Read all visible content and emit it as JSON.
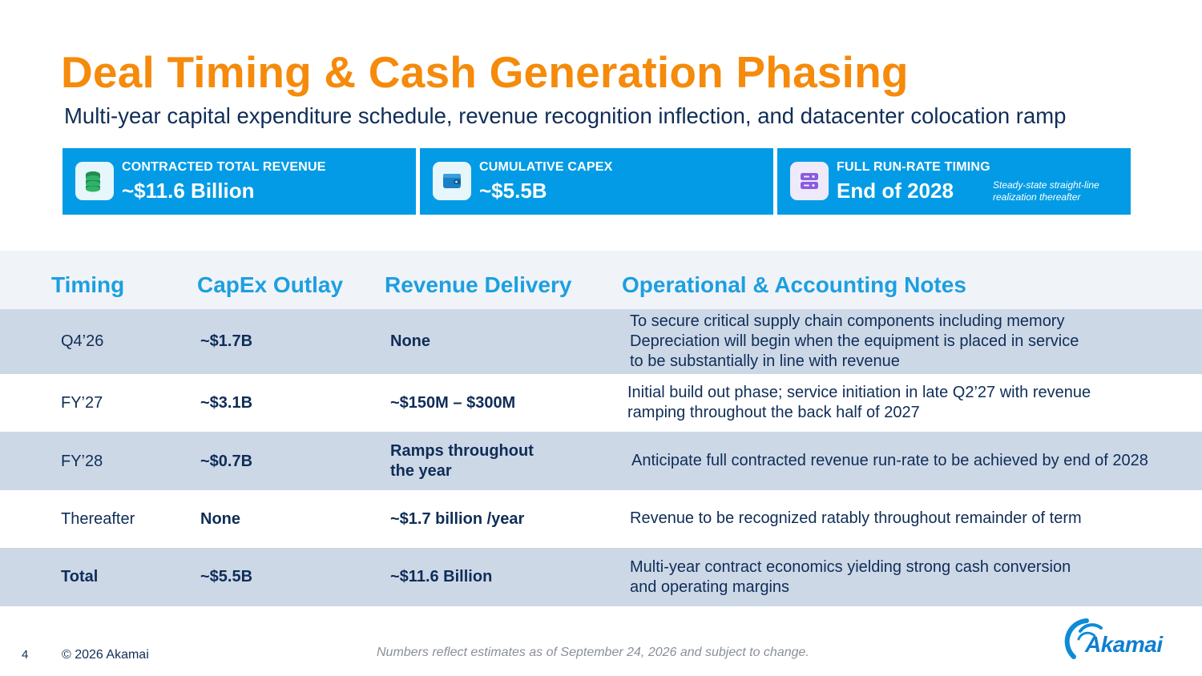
{
  "slide": {
    "title": "Deal Timing & Cash Generation Phasing",
    "subtitle": "Multi-year capital expenditure schedule, revenue recognition inflection, and datacenter colocation ramp"
  },
  "cards": [
    {
      "icon": "coins-icon",
      "label": "CONTRACTED TOTAL REVENUE",
      "value": "~$11.6 Billion",
      "note": ""
    },
    {
      "icon": "wallet-icon",
      "label": "CUMULATIVE CAPEX",
      "value": "~$5.5B",
      "note": ""
    },
    {
      "icon": "server-icon",
      "label": "FULL RUN-RATE TIMING",
      "value": "End of 2028",
      "note": "Steady-state straight-line realization thereafter"
    }
  ],
  "table": {
    "headers": [
      "Timing",
      "CapEx Outlay",
      "Revenue Delivery",
      "Operational & Accounting Notes"
    ],
    "rows": [
      {
        "timing": "Q4’26",
        "capex": "~$1.7B",
        "revenue": "None",
        "notes": [
          "To secure critical supply chain components including memory",
          "Depreciation will begin when the equipment is placed in service",
          "to be substantially in line with revenue"
        ]
      },
      {
        "timing": "FY’27",
        "capex": "~$3.1B",
        "revenue": "~$150M – $300M",
        "notes": [
          "Initial build out phase; service initiation in late Q2’27 with revenue",
          "ramping throughout the back half of 2027"
        ]
      },
      {
        "timing": "FY’28",
        "capex": "~$0.7B",
        "revenue": [
          "Ramps throughout",
          "the year"
        ],
        "notes": [
          "Anticipate full contracted revenue run-rate to be achieved by end of 2028"
        ]
      },
      {
        "timing": "Thereafter",
        "capex": "None",
        "revenue": "~$1.7 billion /year",
        "notes": [
          "Revenue to be recognized ratably throughout remainder of term"
        ]
      },
      {
        "timing": "Total",
        "capex": "~$5.5B",
        "revenue": "~$11.6 Billion",
        "notes": [
          "Multi-year contract economics yielding strong cash conversion",
          "and operating margins"
        ]
      }
    ]
  },
  "footer": {
    "page_number": "4",
    "copyright": "© 2026 Akamai",
    "disclaimer": "Numbers reflect estimates as of September 24, 2026 and subject to change."
  },
  "logo": {
    "text": "Akamai",
    "icon": "akamai-logo"
  },
  "colors": {
    "title": "#f58a0b",
    "card_bg": "#039be5",
    "header_text": "#1d9fe0",
    "row_shade": "#cdd8e7",
    "body_text": "#0f2d57"
  }
}
